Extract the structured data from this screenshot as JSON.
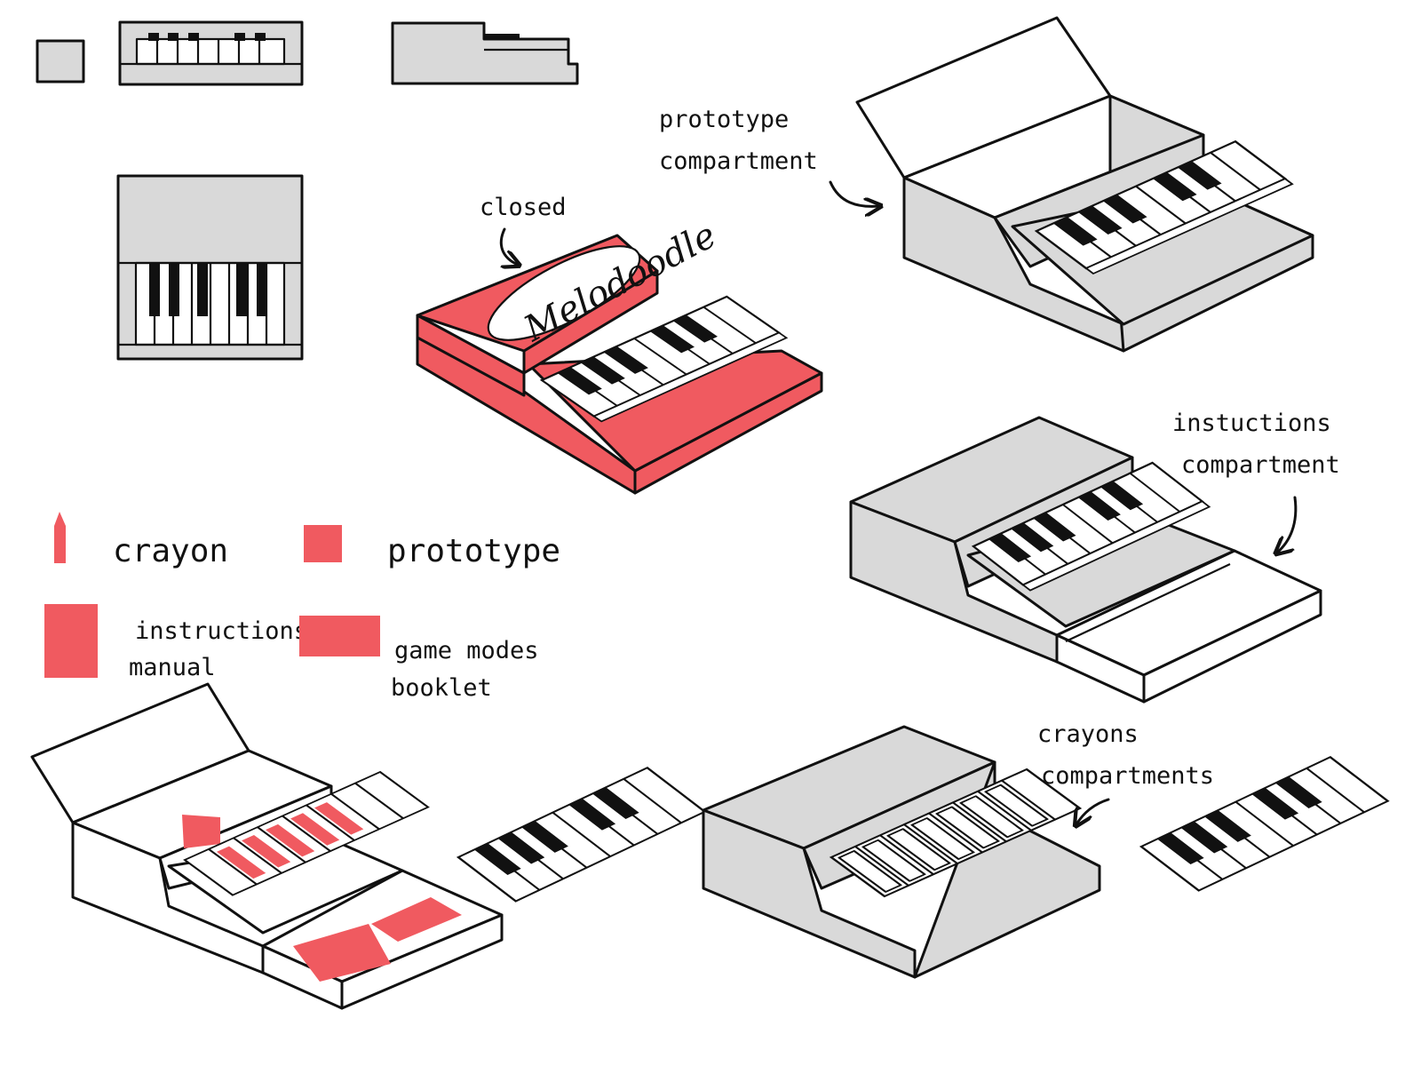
{
  "colors": {
    "accent": "#f05a60",
    "grey": "#d9d9d9",
    "ink": "#111111",
    "paper": "#ffffff"
  },
  "labels": {
    "closed": "closed",
    "logo": "Melodoodle",
    "prototype_compartment": [
      "prototype",
      "compartment"
    ],
    "instructions_compartment": [
      "instuctions",
      "compartment"
    ],
    "crayons_compartments": [
      "crayons",
      "compartments"
    ]
  },
  "legend": {
    "crayon": "crayon",
    "prototype": "prototype",
    "instructions_manual": [
      "instructions",
      "manual"
    ],
    "game_modes_booklet": [
      "game modes",
      "booklet"
    ]
  },
  "icons": [
    "arrow-icon",
    "piano-keys-icon",
    "crayon-icon"
  ]
}
